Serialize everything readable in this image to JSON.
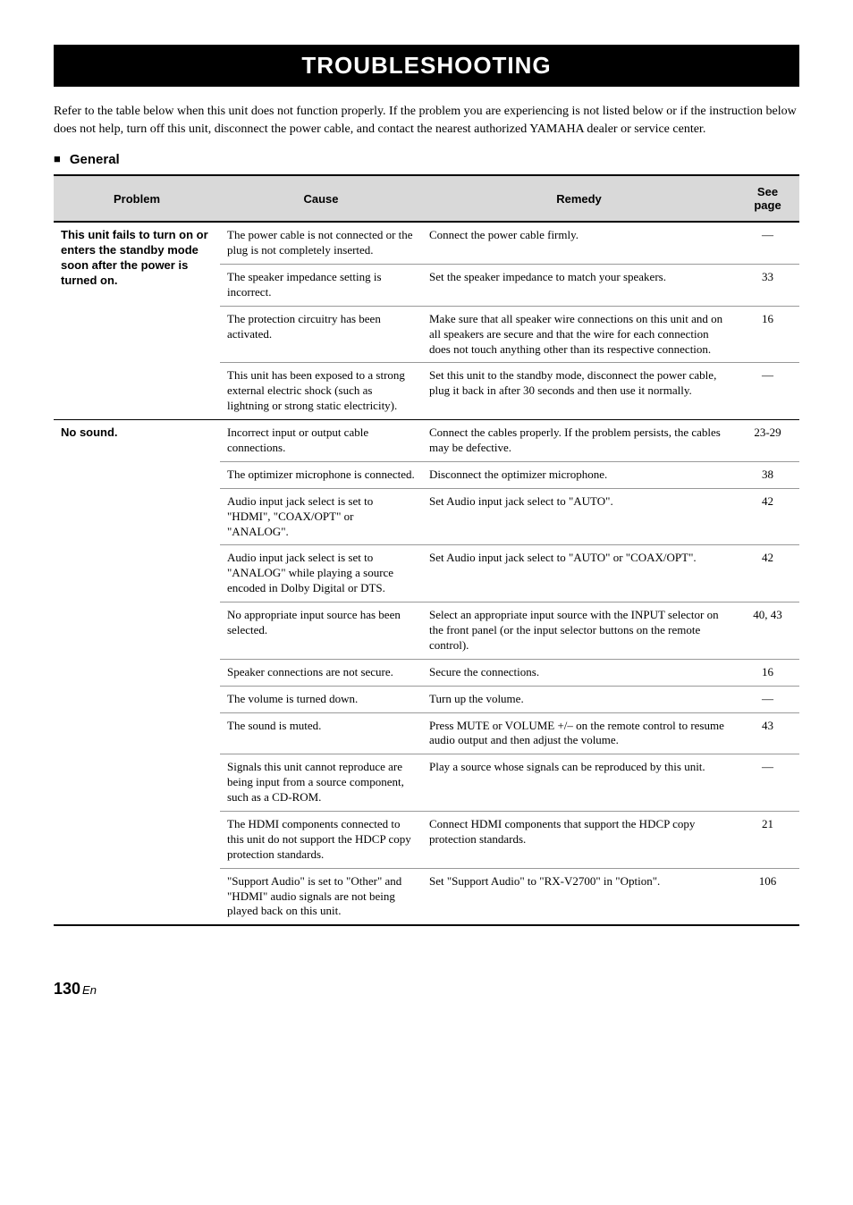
{
  "title": "TROUBLESHOOTING",
  "intro": "Refer to the table below when this unit does not function properly. If the problem you are experiencing is not listed below or if the instruction below does not help, turn off this unit, disconnect the power cable, and contact the nearest authorized YAMAHA dealer or service center.",
  "section": "General",
  "headers": {
    "problem": "Problem",
    "cause": "Cause",
    "remedy": "Remedy",
    "page": "See page"
  },
  "groups": [
    {
      "problem": "This unit fails to turn on or enters the standby mode soon after the power is turned on.",
      "rows": [
        {
          "cause": "The power cable is not connected or the plug is not completely inserted.",
          "remedy": "Connect the power cable firmly.",
          "page": "—"
        },
        {
          "cause": "The speaker impedance setting is incorrect.",
          "remedy": "Set the speaker impedance to match your speakers.",
          "page": "33"
        },
        {
          "cause": "The protection circuitry has been activated.",
          "remedy": "Make sure that all speaker wire connections on this unit and on all speakers are secure and that the wire for each connection does not touch anything other than its respective connection.",
          "page": "16"
        },
        {
          "cause": "This unit has been exposed to a strong external electric shock (such as lightning or strong static electricity).",
          "remedy": "Set this unit to the standby mode, disconnect the power cable, plug it back in after 30 seconds and then use it normally.",
          "page": "—"
        }
      ]
    },
    {
      "problem": "No sound.",
      "rows": [
        {
          "cause": "Incorrect input or output cable connections.",
          "remedy": "Connect the cables properly. If the problem persists, the cables may be defective.",
          "page": "23-29"
        },
        {
          "cause": "The optimizer microphone is connected.",
          "remedy": "Disconnect the optimizer microphone.",
          "page": "38"
        },
        {
          "cause": "Audio input jack select is set to \"HDMI\", \"COAX/OPT\" or \"ANALOG\".",
          "remedy": "Set Audio input jack select to \"AUTO\".",
          "page": "42"
        },
        {
          "cause": "Audio input jack select is set to \"ANALOG\" while playing a source encoded in Dolby Digital or DTS.",
          "remedy": "Set Audio input jack select to \"AUTO\" or \"COAX/OPT\".",
          "page": "42"
        },
        {
          "cause": "No appropriate input source has been selected.",
          "remedy": "Select an appropriate input source with the INPUT selector on the front panel (or the input selector buttons on the remote control).",
          "page": "40, 43"
        },
        {
          "cause": "Speaker connections are not secure.",
          "remedy": "Secure the connections.",
          "page": "16"
        },
        {
          "cause": "The volume is turned down.",
          "remedy": "Turn up the volume.",
          "page": "—"
        },
        {
          "cause": "The sound is muted.",
          "remedy": "Press MUTE or VOLUME +/– on the remote control to resume audio output and then adjust the volume.",
          "page": "43"
        },
        {
          "cause": "Signals this unit cannot reproduce are being input from a source component, such as a CD-ROM.",
          "remedy": "Play a source whose signals can be reproduced by this unit.",
          "page": "—"
        },
        {
          "cause": "The HDMI components connected to this unit do not support the HDCP copy protection standards.",
          "remedy": "Connect HDMI components that support the HDCP copy protection standards.",
          "page": "21"
        },
        {
          "cause": "\"Support Audio\" is set to \"Other\" and \"HDMI\" audio signals are not being played back on this unit.",
          "remedy": "Set \"Support Audio\" to \"RX-V2700\" in \"Option\".",
          "page": "106"
        }
      ]
    }
  ],
  "pageNumber": "130",
  "pageLang": "En"
}
